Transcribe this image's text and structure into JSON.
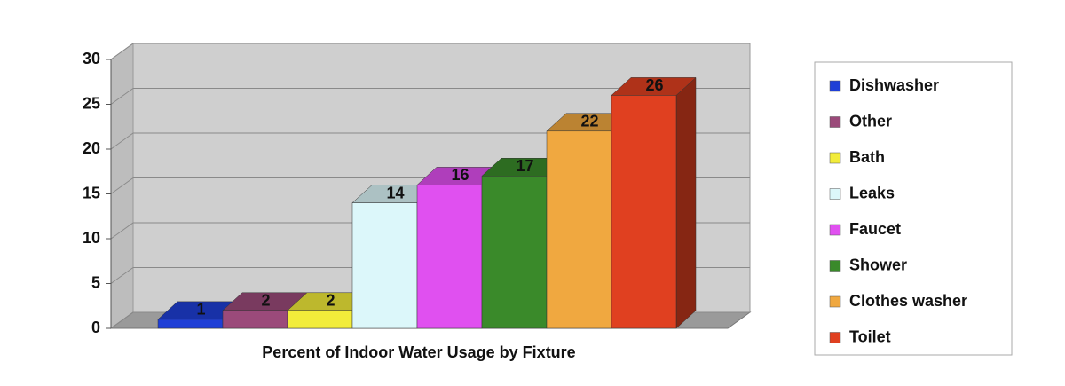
{
  "chart_data": {
    "type": "bar3d",
    "xlabel": "Percent of Indoor Water Usage by Fixture",
    "ylim": [
      0,
      30
    ],
    "yticks": [
      0,
      5,
      10,
      15,
      20,
      25,
      30
    ],
    "grid": true,
    "legend": "right",
    "series": [
      {
        "name": "Dishwasher",
        "color": "#1f3fd6",
        "values": [
          1
        ]
      },
      {
        "name": "Other",
        "color": "#9b4a7a",
        "values": [
          2
        ]
      },
      {
        "name": "Bath",
        "color": "#f2ec3a",
        "values": [
          2
        ]
      },
      {
        "name": "Leaks",
        "color": "#dcf7fa",
        "values": [
          14
        ]
      },
      {
        "name": "Faucet",
        "color": "#e050f0",
        "values": [
          16
        ]
      },
      {
        "name": "Shower",
        "color": "#3a8a2a",
        "values": [
          17
        ]
      },
      {
        "name": "Clothes washer",
        "color": "#f0a840",
        "values": [
          22
        ]
      },
      {
        "name": "Toilet",
        "color": "#e04020",
        "values": [
          26
        ]
      }
    ]
  }
}
